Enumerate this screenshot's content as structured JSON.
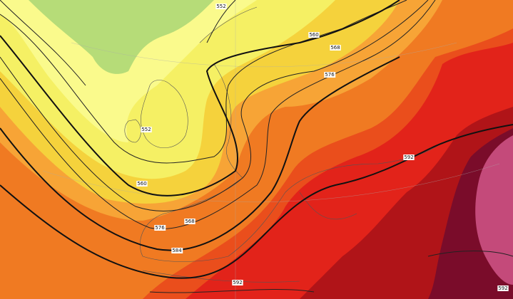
{
  "contour_labels": [
    "552",
    "560",
    "568",
    "576",
    "552",
    "560",
    "568",
    "576",
    "584",
    "592",
    "592",
    "592"
  ]
}
